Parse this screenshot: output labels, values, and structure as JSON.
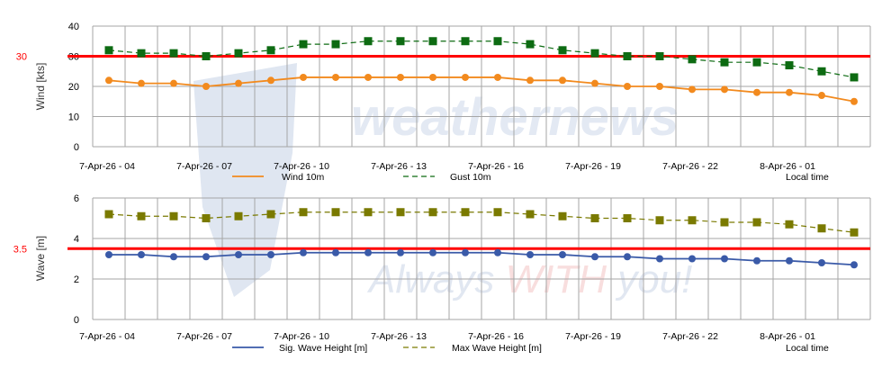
{
  "watermark": {
    "logo": "weathernews",
    "tagline_a": "Always ",
    "tagline_b": "WITH",
    "tagline_c": " you!"
  },
  "colors": {
    "threshold": "#ff0000",
    "wind": "#f28a1e",
    "gust": "#0d6b12",
    "sig": "#3a5aa8",
    "max": "#7a7a00",
    "grid": "#a6a6a6"
  },
  "chart_data": [
    {
      "type": "line",
      "ylabel": "Wind [kts]",
      "xlabel": "Local time",
      "ylim": [
        0,
        40
      ],
      "yticks": [
        "0",
        "10",
        "20",
        "30",
        "40"
      ],
      "threshold": {
        "value": 30,
        "label": "30"
      },
      "xtick_labels": [
        "7-Apr-26 - 04",
        "7-Apr-26 - 07",
        "7-Apr-26 - 10",
        "7-Apr-26 - 13",
        "7-Apr-26 - 16",
        "7-Apr-26 - 19",
        "7-Apr-26 - 22",
        "8-Apr-26 - 01"
      ],
      "series": [
        {
          "name": "Wind 10m",
          "key": "wind",
          "marker": "circle",
          "dashed": false,
          "values": [
            22,
            21,
            21,
            20,
            21,
            22,
            23,
            23,
            23,
            23,
            23,
            23,
            23,
            22,
            22,
            21,
            20,
            20,
            19,
            19,
            18,
            18,
            17,
            15
          ]
        },
        {
          "name": "Gust 10m",
          "key": "gust",
          "marker": "square",
          "dashed": true,
          "values": [
            32,
            31,
            31,
            30,
            31,
            32,
            34,
            34,
            35,
            35,
            35,
            35,
            35,
            34,
            32,
            31,
            30,
            30,
            29,
            28,
            28,
            27,
            25,
            23
          ]
        }
      ]
    },
    {
      "type": "line",
      "ylabel": "Wave [m]",
      "xlabel": "Local time",
      "ylim": [
        0,
        6
      ],
      "yticks": [
        "0",
        "2",
        "4",
        "6"
      ],
      "threshold": {
        "value": 3.5,
        "label": "3.5"
      },
      "xtick_labels": [
        "7-Apr-26 - 04",
        "7-Apr-26 - 07",
        "7-Apr-26 - 10",
        "7-Apr-26 - 13",
        "7-Apr-26 - 16",
        "7-Apr-26 - 19",
        "7-Apr-26 - 22",
        "8-Apr-26 - 01"
      ],
      "series": [
        {
          "name": "Sig. Wave Height [m]",
          "key": "sig",
          "marker": "circle",
          "dashed": false,
          "values": [
            3.2,
            3.2,
            3.1,
            3.1,
            3.2,
            3.2,
            3.3,
            3.3,
            3.3,
            3.3,
            3.3,
            3.3,
            3.3,
            3.2,
            3.2,
            3.1,
            3.1,
            3.0,
            3.0,
            3.0,
            2.9,
            2.9,
            2.8,
            2.7
          ]
        },
        {
          "name": "Max Wave Height [m]",
          "key": "max",
          "marker": "square",
          "dashed": true,
          "values": [
            5.2,
            5.1,
            5.1,
            5.0,
            5.1,
            5.2,
            5.3,
            5.3,
            5.3,
            5.3,
            5.3,
            5.3,
            5.3,
            5.2,
            5.1,
            5.0,
            5.0,
            4.9,
            4.9,
            4.8,
            4.8,
            4.7,
            4.5,
            4.3
          ]
        }
      ]
    }
  ]
}
